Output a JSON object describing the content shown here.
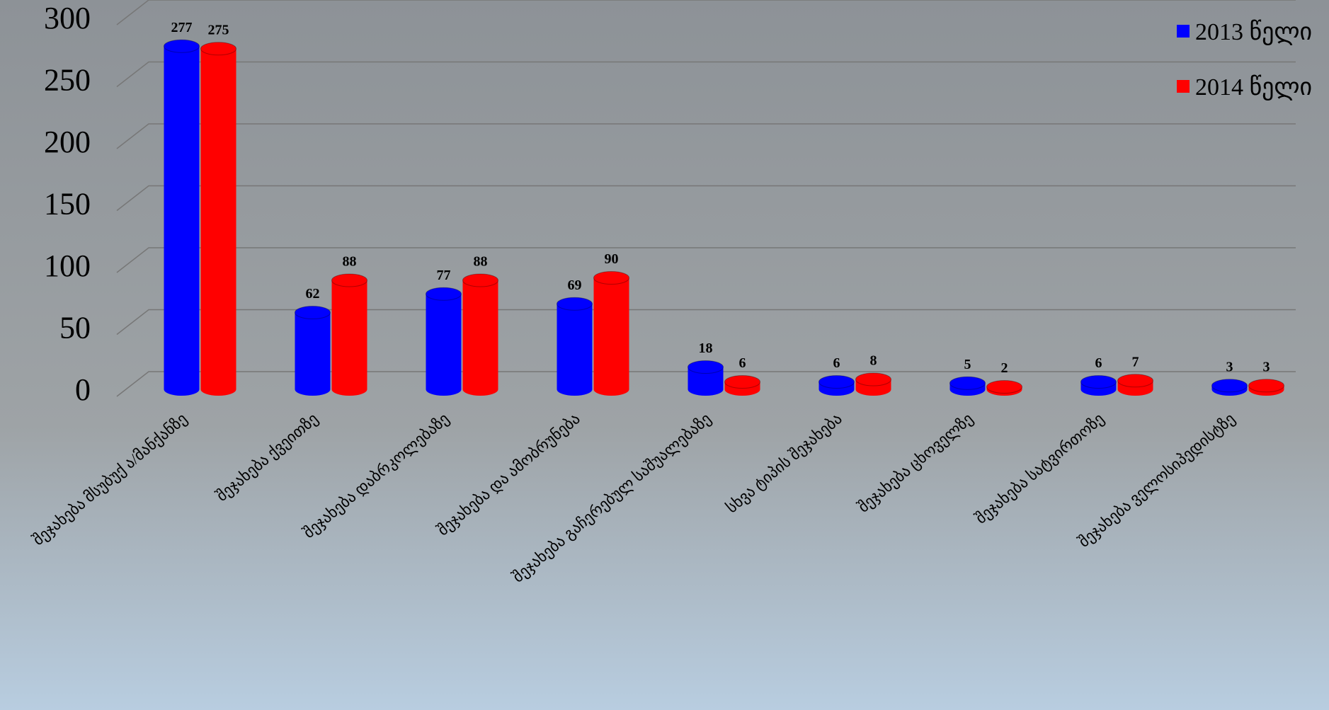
{
  "chart_data": {
    "type": "bar",
    "categories": [
      "შეჯახება მსუბუქ ა/მანქანზე",
      "შეჯახება ქვეითზე",
      "შეჯახება დაბრკოლებაზე",
      "შეჯახება და ამობრუნება",
      "შეჯახება გაჩერებულ საშუალებაზე",
      "სხვა ტიპის შეჯახება",
      "შეჯახება ცხოველზე",
      "შეჯახება სატვირთოზე",
      "შეჯახება ველოსიპედისტზე"
    ],
    "series": [
      {
        "name": "2013 წელი",
        "color": "#0000ff",
        "values": [
          277,
          62,
          77,
          69,
          18,
          6,
          5,
          6,
          3
        ]
      },
      {
        "name": "2014 წელი",
        "color": "#ff0000",
        "values": [
          275,
          88,
          88,
          90,
          6,
          8,
          2,
          7,
          3
        ]
      }
    ],
    "ylim": [
      0,
      300
    ],
    "yticks": [
      0,
      50,
      100,
      150,
      200,
      250,
      300
    ],
    "grid": true,
    "legend": "top-right"
  }
}
